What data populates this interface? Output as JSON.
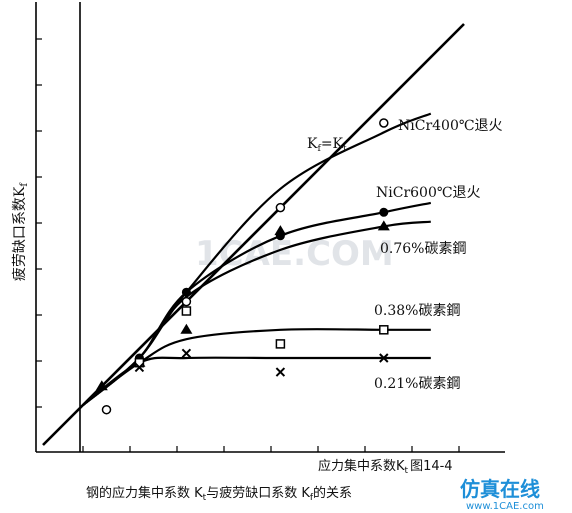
{
  "chart_data": {
    "type": "line",
    "xlabel": "应力集中系数K",
    "xlabel_sub": "t",
    "ylabel": "疲劳缺口系数K",
    "ylabel_sub": "f",
    "figure_number": "图14-4",
    "caption_parts": [
      "钢的应力集中系数 K",
      "与疲劳缺口系数 K",
      "的关系"
    ],
    "caption_subs": [
      "t",
      "f"
    ],
    "reference": {
      "name_parts": [
        "K",
        "f",
        "=K",
        "t"
      ],
      "x": [
        1.0,
        5.0
      ],
      "y": [
        1.0,
        5.0
      ]
    },
    "xlim": [
      1.0,
      5.5
    ],
    "ylim": [
      1.0,
      5.5
    ],
    "series": [
      {
        "name": "NiCr400℃退火",
        "marker": "circle-open",
        "x": [
          1.0,
          1.6,
          2.1,
          3.1,
          4.2,
          4.7
        ],
        "y": [
          1.0,
          1.5,
          2.2,
          3.3,
          3.9,
          4.1
        ],
        "points_x": [
          1.25,
          1.6,
          2.1,
          3.1,
          4.2
        ],
        "points_y": [
          0.95,
          1.45,
          2.1,
          3.1,
          4.0
        ]
      },
      {
        "name": "NiCr600℃退火",
        "marker": "circle-filled",
        "x": [
          1.0,
          1.6,
          2.1,
          3.1,
          4.2,
          4.7
        ],
        "y": [
          1.0,
          1.5,
          2.2,
          2.8,
          3.05,
          3.15
        ],
        "points_x": [
          1.6,
          2.1,
          3.1,
          4.2
        ],
        "points_y": [
          1.5,
          2.2,
          2.8,
          3.05
        ]
      },
      {
        "name": "0.76%碳素鋼",
        "marker": "triangle-filled",
        "x": [
          1.0,
          1.6,
          2.1,
          3.1,
          4.2,
          4.7
        ],
        "y": [
          1.0,
          1.5,
          2.15,
          2.65,
          2.9,
          2.95
        ],
        "points_x": [
          1.2,
          1.6,
          2.1,
          3.1,
          4.2
        ],
        "points_y": [
          1.2,
          1.45,
          1.8,
          2.85,
          2.9
        ]
      },
      {
        "name": "0.38%碳素鋼",
        "marker": "square-open",
        "x": [
          1.0,
          1.6,
          2.1,
          3.1,
          4.2,
          4.7
        ],
        "y": [
          1.0,
          1.45,
          1.7,
          1.8,
          1.8,
          1.8
        ],
        "points_x": [
          1.6,
          2.1,
          3.1,
          4.2
        ],
        "points_y": [
          1.45,
          2.0,
          1.65,
          1.8
        ]
      },
      {
        "name": "0.21%碳素鋼",
        "marker": "x",
        "x": [
          1.0,
          1.6,
          2.1,
          3.1,
          4.2,
          4.7
        ],
        "y": [
          1.0,
          1.45,
          1.5,
          1.5,
          1.5,
          1.5
        ],
        "points_x": [
          1.6,
          2.1,
          3.1,
          4.2
        ],
        "points_y": [
          1.4,
          1.55,
          1.35,
          1.5
        ]
      }
    ]
  },
  "watermark": {
    "brand": "仿真在线",
    "site": "www.1CAE.com",
    "faint": "1CAE.COM",
    "brand_color": "#1e8fd8"
  }
}
